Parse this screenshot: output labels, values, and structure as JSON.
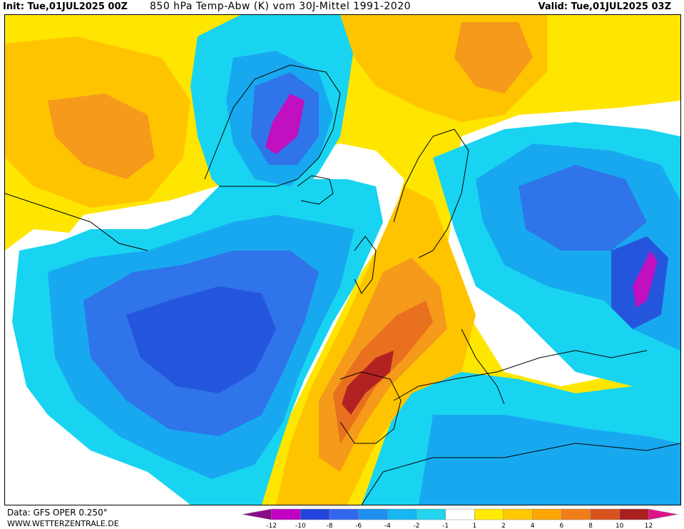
{
  "header": {
    "init_text": "Init: Tue,01JUL2025 00Z",
    "title": "850 hPa Temp-Abw (K) vom 30J-Mittel 1991-2020",
    "valid_text": "Valid: Tue,01JUL2025 03Z"
  },
  "footer": {
    "data_source": "Data: GFS OPER 0.250°",
    "site": "WWW.WETTERZENTRALE.DE"
  },
  "legend": {
    "tick_labels": [
      "-12",
      "-10",
      "-8",
      "-6",
      "-4",
      "-2",
      "-1",
      "1",
      "2",
      "4",
      "6",
      "8",
      "10",
      "12"
    ],
    "colors": [
      "#8b0a8b",
      "#c000c0",
      "#2244dd",
      "#3366ee",
      "#1f8fef",
      "#15b8f0",
      "#22d4f0",
      "#ffffff",
      "#ffea00",
      "#ffc800",
      "#ffa500",
      "#f07d1a",
      "#d9531e",
      "#a82020",
      "#e0128a"
    ]
  },
  "map": {
    "palette": {
      "yellow": "#ffe600",
      "gold": "#ffc400",
      "orange": "#f59a1a",
      "darkorange": "#e8701e",
      "red": "#b32222",
      "cyan": "#18d4f0",
      "lightblue": "#18a8f0",
      "blue": "#2f74e8",
      "deepblue": "#2456dd",
      "magenta": "#c010c0",
      "coast": "#000000"
    }
  }
}
